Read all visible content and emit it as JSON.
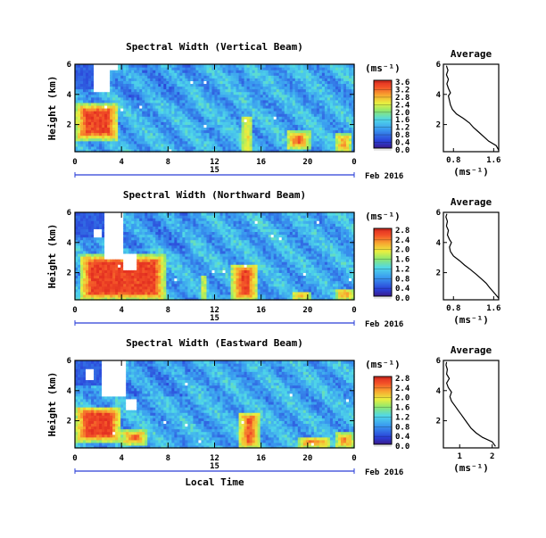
{
  "chart_data": [
    {
      "type": "heatmap",
      "title": "Spectral Width (Vertical Beam)",
      "ylabel": "Height (km)",
      "y_ticks": [
        "2",
        "4",
        "6"
      ],
      "ylim": [
        0.2,
        6
      ],
      "x_ticks": [
        "0",
        "4",
        "8",
        "12",
        "16",
        "20",
        "0"
      ],
      "xlim": [
        0,
        24
      ],
      "date_label": "15",
      "month_label": "Feb 2016",
      "colorbar": {
        "label": "(ms⁻¹)",
        "ticks": [
          "0.0",
          "0.4",
          "0.8",
          "1.2",
          "1.6",
          "2.0",
          "2.4",
          "2.8",
          "3.2",
          "3.6"
        ],
        "min": 0,
        "max": 3.6
      },
      "average": {
        "title": "Average",
        "xlabel": "(ms⁻¹)",
        "x_ticks": [
          "0.8",
          "1.6"
        ],
        "xlim": [
          0.6,
          1.7
        ],
        "y_ticks": [
          "2",
          "4",
          "6"
        ],
        "profile": [
          [
            1.7,
            0.3
          ],
          [
            1.65,
            0.6
          ],
          [
            1.5,
            0.9
          ],
          [
            1.4,
            1.2
          ],
          [
            1.3,
            1.5
          ],
          [
            1.2,
            1.8
          ],
          [
            1.12,
            2.1
          ],
          [
            1.0,
            2.4
          ],
          [
            0.86,
            2.7
          ],
          [
            0.78,
            3.0
          ],
          [
            0.74,
            3.3
          ],
          [
            0.72,
            3.6
          ],
          [
            0.7,
            3.9
          ],
          [
            0.74,
            4.1
          ],
          [
            0.7,
            4.4
          ],
          [
            0.67,
            4.7
          ],
          [
            0.7,
            5.0
          ],
          [
            0.66,
            5.3
          ],
          [
            0.69,
            5.6
          ],
          [
            0.66,
            5.9
          ]
        ]
      }
    },
    {
      "type": "heatmap",
      "title": "Spectral Width (Northward Beam)",
      "ylabel": "Height (km)",
      "y_ticks": [
        "2",
        "4",
        "6"
      ],
      "ylim": [
        0.2,
        6
      ],
      "x_ticks": [
        "0",
        "4",
        "8",
        "12",
        "16",
        "20",
        "0"
      ],
      "xlim": [
        0,
        24
      ],
      "date_label": "15",
      "month_label": "Feb 2016",
      "colorbar": {
        "label": "(ms⁻¹)",
        "ticks": [
          "0.0",
          "0.4",
          "0.8",
          "1.2",
          "1.6",
          "2.0",
          "2.4",
          "2.8"
        ],
        "min": 0,
        "max": 2.8
      },
      "average": {
        "title": "Average",
        "xlabel": "(ms⁻¹)",
        "x_ticks": [
          "0.8",
          "1.6"
        ],
        "xlim": [
          0.6,
          1.7
        ],
        "y_ticks": [
          "2",
          "4",
          "6"
        ],
        "profile": [
          [
            1.72,
            0.3
          ],
          [
            1.6,
            0.7
          ],
          [
            1.52,
            1.0
          ],
          [
            1.45,
            1.3
          ],
          [
            1.35,
            1.6
          ],
          [
            1.25,
            1.9
          ],
          [
            1.14,
            2.2
          ],
          [
            1.02,
            2.5
          ],
          [
            0.92,
            2.8
          ],
          [
            0.8,
            3.1
          ],
          [
            0.74,
            3.4
          ],
          [
            0.72,
            3.7
          ],
          [
            0.76,
            4.0
          ],
          [
            0.72,
            4.2
          ],
          [
            0.68,
            4.5
          ],
          [
            0.7,
            4.8
          ],
          [
            0.66,
            5.1
          ],
          [
            0.68,
            5.4
          ],
          [
            0.65,
            5.7
          ],
          [
            0.67,
            5.9
          ]
        ]
      }
    },
    {
      "type": "heatmap",
      "title": "Spectral Width (Eastward Beam)",
      "ylabel": "Height (km)",
      "y_ticks": [
        "2",
        "4",
        "6"
      ],
      "ylim": [
        0.2,
        6
      ],
      "x_ticks": [
        "0",
        "4",
        "8",
        "12",
        "16",
        "20",
        "0"
      ],
      "xlim": [
        0,
        24
      ],
      "xlabel": "Local Time",
      "date_label": "15",
      "month_label": "Feb 2016",
      "colorbar": {
        "label": "(ms⁻¹)",
        "ticks": [
          "0.0",
          "0.4",
          "0.8",
          "1.2",
          "1.6",
          "2.0",
          "2.4",
          "2.8"
        ],
        "min": 0,
        "max": 2.8
      },
      "average": {
        "title": "Average",
        "xlabel": "(ms⁻¹)",
        "x_ticks": [
          "1",
          "2"
        ],
        "xlim": [
          0.5,
          2.2
        ],
        "y_ticks": [
          "2",
          "4",
          "6"
        ],
        "profile": [
          [
            2.1,
            0.3
          ],
          [
            2.0,
            0.6
          ],
          [
            1.7,
            0.9
          ],
          [
            1.5,
            1.2
          ],
          [
            1.35,
            1.5
          ],
          [
            1.25,
            1.8
          ],
          [
            1.15,
            2.1
          ],
          [
            1.05,
            2.4
          ],
          [
            0.95,
            2.7
          ],
          [
            0.85,
            3.0
          ],
          [
            0.75,
            3.3
          ],
          [
            0.7,
            3.6
          ],
          [
            0.75,
            3.9
          ],
          [
            0.65,
            4.2
          ],
          [
            0.6,
            4.5
          ],
          [
            0.68,
            4.8
          ],
          [
            0.6,
            5.1
          ],
          [
            0.62,
            5.4
          ],
          [
            0.58,
            5.7
          ],
          [
            0.6,
            5.9
          ]
        ]
      }
    }
  ]
}
